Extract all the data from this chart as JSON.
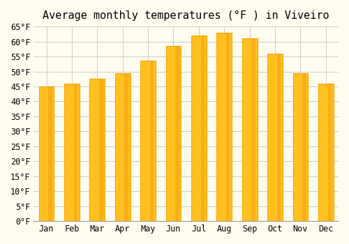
{
  "title": "Average monthly temperatures (°F ) in Viveiro",
  "months": [
    "Jan",
    "Feb",
    "Mar",
    "Apr",
    "May",
    "Jun",
    "Jul",
    "Aug",
    "Sep",
    "Oct",
    "Nov",
    "Dec"
  ],
  "values": [
    45.0,
    46.0,
    47.5,
    49.5,
    53.5,
    58.5,
    62.0,
    63.0,
    61.0,
    56.0,
    49.5,
    46.0
  ],
  "bar_color_face": "#FFC020",
  "bar_color_edge": "#FFA500",
  "ylim": [
    0,
    65
  ],
  "ytick_step": 5,
  "background_color": "#FFFDF0",
  "grid_color": "#CCCCCC",
  "title_fontsize": 11,
  "tick_fontsize": 8.5,
  "font_family": "monospace"
}
